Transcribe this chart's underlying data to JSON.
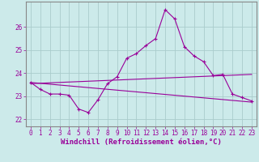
{
  "xlabel": "Windchill (Refroidissement éolien,°C)",
  "background_color": "#cceaea",
  "grid_color": "#aacccc",
  "line_color": "#990099",
  "spine_color": "#888888",
  "xlim": [
    -0.5,
    23.5
  ],
  "ylim": [
    21.7,
    27.1
  ],
  "yticks": [
    22,
    23,
    24,
    25,
    26
  ],
  "xticks": [
    0,
    1,
    2,
    3,
    4,
    5,
    6,
    7,
    8,
    9,
    10,
    11,
    12,
    13,
    14,
    15,
    16,
    17,
    18,
    19,
    20,
    21,
    22,
    23
  ],
  "series1_x": [
    0,
    1,
    2,
    3,
    4,
    5,
    6,
    7,
    8,
    9,
    10,
    11,
    12,
    13,
    14,
    15,
    16,
    17,
    18,
    19,
    20,
    21,
    22,
    23
  ],
  "series1_y": [
    23.6,
    23.3,
    23.1,
    23.1,
    23.05,
    22.45,
    22.3,
    22.85,
    23.55,
    23.85,
    24.65,
    24.85,
    25.2,
    25.5,
    26.75,
    26.35,
    25.15,
    24.75,
    24.5,
    23.9,
    23.95,
    23.1,
    22.95,
    22.8
  ],
  "series2_x": [
    0,
    23
  ],
  "series2_y": [
    23.55,
    23.95
  ],
  "series3_x": [
    0,
    23
  ],
  "series3_y": [
    23.6,
    22.75
  ]
}
